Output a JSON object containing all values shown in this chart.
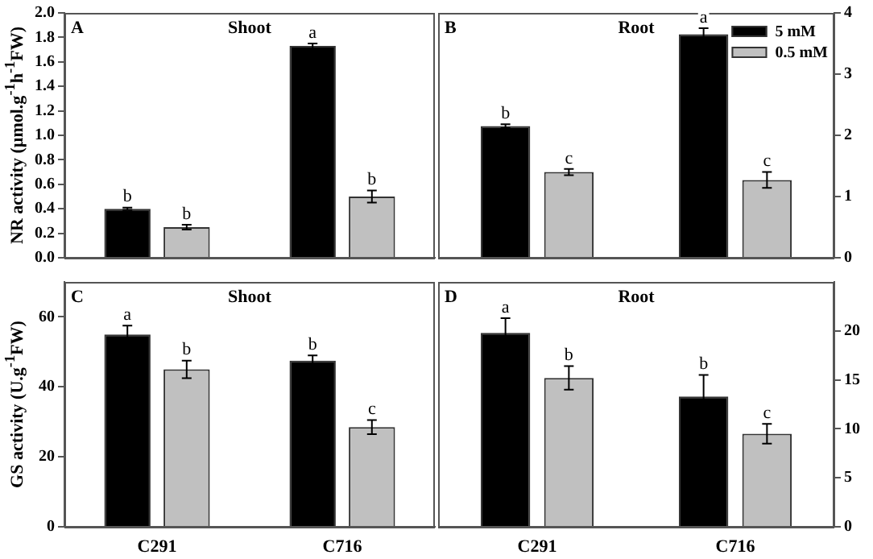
{
  "chart_data": [
    {
      "type": "bar",
      "title": "Shoot",
      "categories": [
        null,
        null
      ],
      "series": [
        {
          "color": "#000000",
          "values": [
            0.4,
            1.73
          ],
          "errors": [
            0.01,
            0.02
          ],
          "value_labels": [
            "b",
            "a"
          ]
        },
        {
          "color": "#c0c0c0",
          "values": [
            0.25,
            0.5
          ],
          "errors": [
            0.02,
            0.05
          ],
          "value_labels": [
            "b",
            "b"
          ]
        }
      ],
      "ylabel": "NR activity (µmol.g$^{-1}$h$^{-1}$FW)",
      "ylim": [
        0,
        2
      ],
      "yticks": [
        {
          "value": 0,
          "label": "0.0"
        },
        {
          "value": 0.2,
          "label": "0.2"
        },
        {
          "value": 0.4,
          "label": "0.4"
        },
        {
          "value": 0.6,
          "label": "0.6"
        },
        {
          "value": 0.8,
          "label": "0.8"
        },
        {
          "value": 1,
          "label": "1.0"
        },
        {
          "value": 1.2,
          "label": "1.2"
        },
        {
          "value": 1.4,
          "label": "1.4"
        },
        {
          "value": 1.6,
          "label": "1.6"
        },
        {
          "value": 1.8,
          "label": "1.8"
        },
        {
          "value": 2,
          "label": "2.0"
        }
      ],
      "tick_labels": "y",
      "grid": false,
      "legend": false,
      "annotations": [
        "A"
      ]
    },
    {
      "type": "bar",
      "title": "Root",
      "categories": [
        null,
        null
      ],
      "series": [
        {
          "name": "5 mM",
          "color": "#000000",
          "values": [
            2.15,
            3.65
          ],
          "errors": [
            0.03,
            0.1
          ],
          "value_labels": [
            "b",
            "a"
          ]
        },
        {
          "name": "0.5 mM",
          "color": "#c0c0c0",
          "values": [
            1.4,
            1.27
          ],
          "errors": [
            0.05,
            0.13
          ],
          "value_labels": [
            "c",
            "c"
          ]
        }
      ],
      "ylim": [
        0,
        4
      ],
      "yticks": [
        0,
        1,
        2,
        3,
        4
      ],
      "grid": false,
      "legend": "top right",
      "annotations": [
        "B"
      ]
    },
    {
      "type": "bar",
      "title": "Shoot",
      "categories": [
        "C291",
        "C716"
      ],
      "series": [
        {
          "color": "#000000",
          "values": [
            55,
            47.5
          ],
          "errors": [
            2.5,
            1.5
          ],
          "value_labels": [
            "a",
            "b"
          ]
        },
        {
          "color": "#c0c0c0",
          "values": [
            45,
            28.5
          ],
          "errors": [
            2.5,
            2
          ],
          "value_labels": [
            "b",
            "c"
          ]
        }
      ],
      "ylabel": "GS activity (U.g$^{-1}$FW)",
      "ylim": [
        0,
        70
      ],
      "yticks": [
        0,
        20,
        40,
        60
      ],
      "grid": false,
      "legend": false,
      "annotations": [
        "C"
      ]
    },
    {
      "type": "bar",
      "title": "Root",
      "categories": [
        "C291",
        "C716"
      ],
      "series": [
        {
          "color": "#000000",
          "values": [
            19.8,
            13.3
          ],
          "errors": [
            1.5,
            2.2
          ],
          "value_labels": [
            "a",
            "b"
          ]
        },
        {
          "color": "#c0c0c0",
          "values": [
            15.2,
            9.5
          ],
          "errors": [
            1.2,
            1
          ],
          "value_labels": [
            "b",
            "c"
          ]
        }
      ],
      "ylim": [
        0,
        25
      ],
      "yticks": [
        0,
        5,
        10,
        15,
        20
      ],
      "grid": false,
      "legend": false,
      "annotations": [
        "D"
      ]
    }
  ]
}
